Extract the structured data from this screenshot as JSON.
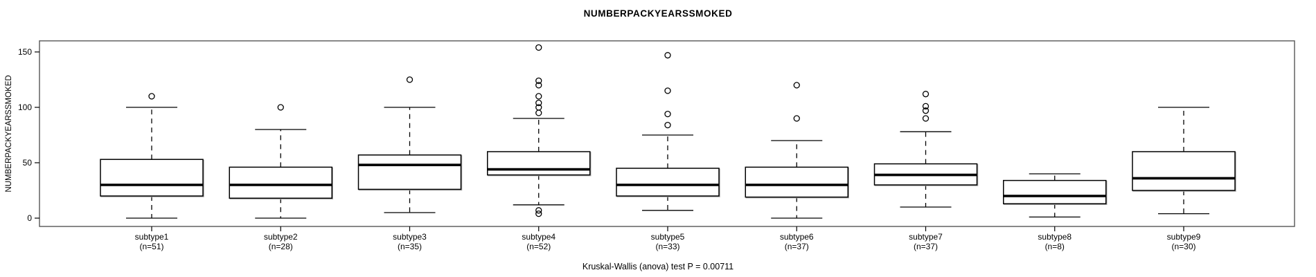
{
  "title": "NUMBERPACKYEARSSMOKED",
  "caption": "Kruskal-Wallis (anova) test P = 0.00711",
  "colors": {
    "stroke": "#000000",
    "frame": "#555555",
    "shadow": "#a8a8a8",
    "background": "#ffffff"
  },
  "chart_data": {
    "type": "boxplot",
    "title": "NUMBERPACKYEARSSMOKED",
    "ylabel": "NUMBERPACKYEARSSMOKED",
    "xlabel": "",
    "caption": "Kruskal-Wallis (anova) test P = 0.00711",
    "yticks": [
      0,
      50,
      100,
      150
    ],
    "ylim": [
      -7,
      160
    ],
    "grid": false,
    "legend": "none",
    "groups": [
      {
        "label": "subtype1",
        "sublabel": "(n=51)",
        "n": 51,
        "whisker_low": 0,
        "q1": 20,
        "median": 30,
        "q3": 53,
        "whisker_high": 100,
        "outliers": [
          110
        ]
      },
      {
        "label": "subtype2",
        "sublabel": "(n=28)",
        "n": 28,
        "whisker_low": 0,
        "q1": 18,
        "median": 30,
        "q3": 46,
        "whisker_high": 80,
        "outliers": [
          100
        ]
      },
      {
        "label": "subtype3",
        "sublabel": "(n=35)",
        "n": 35,
        "whisker_low": 5,
        "q1": 26,
        "median": 48,
        "q3": 57,
        "whisker_high": 100,
        "outliers": [
          125
        ]
      },
      {
        "label": "subtype4",
        "sublabel": "(n=52)",
        "n": 52,
        "whisker_low": 12,
        "q1": 39,
        "median": 44,
        "q3": 60,
        "whisker_high": 90,
        "outliers": [
          154,
          124,
          120,
          110,
          104,
          100,
          95,
          7,
          4
        ]
      },
      {
        "label": "subtype5",
        "sublabel": "(n=33)",
        "n": 33,
        "whisker_low": 7,
        "q1": 20,
        "median": 30,
        "q3": 45,
        "whisker_high": 75,
        "outliers": [
          147,
          115,
          94,
          84
        ]
      },
      {
        "label": "subtype6",
        "sublabel": "(n=37)",
        "n": 37,
        "whisker_low": 0,
        "q1": 19,
        "median": 30,
        "q3": 46,
        "whisker_high": 70,
        "outliers": [
          120,
          90
        ]
      },
      {
        "label": "subtype7",
        "sublabel": "(n=37)",
        "n": 37,
        "whisker_low": 10,
        "q1": 30,
        "median": 39,
        "q3": 49,
        "whisker_high": 78,
        "outliers": [
          112,
          101,
          97,
          90
        ]
      },
      {
        "label": "subtype8",
        "sublabel": "(n=8)",
        "n": 8,
        "whisker_low": 1,
        "q1": 13,
        "median": 20,
        "q3": 34,
        "whisker_high": 40,
        "outliers": []
      },
      {
        "label": "subtype9",
        "sublabel": "(n=30)",
        "n": 30,
        "whisker_low": 4,
        "q1": 25,
        "median": 36,
        "q3": 60,
        "whisker_high": 100,
        "outliers": []
      }
    ]
  }
}
